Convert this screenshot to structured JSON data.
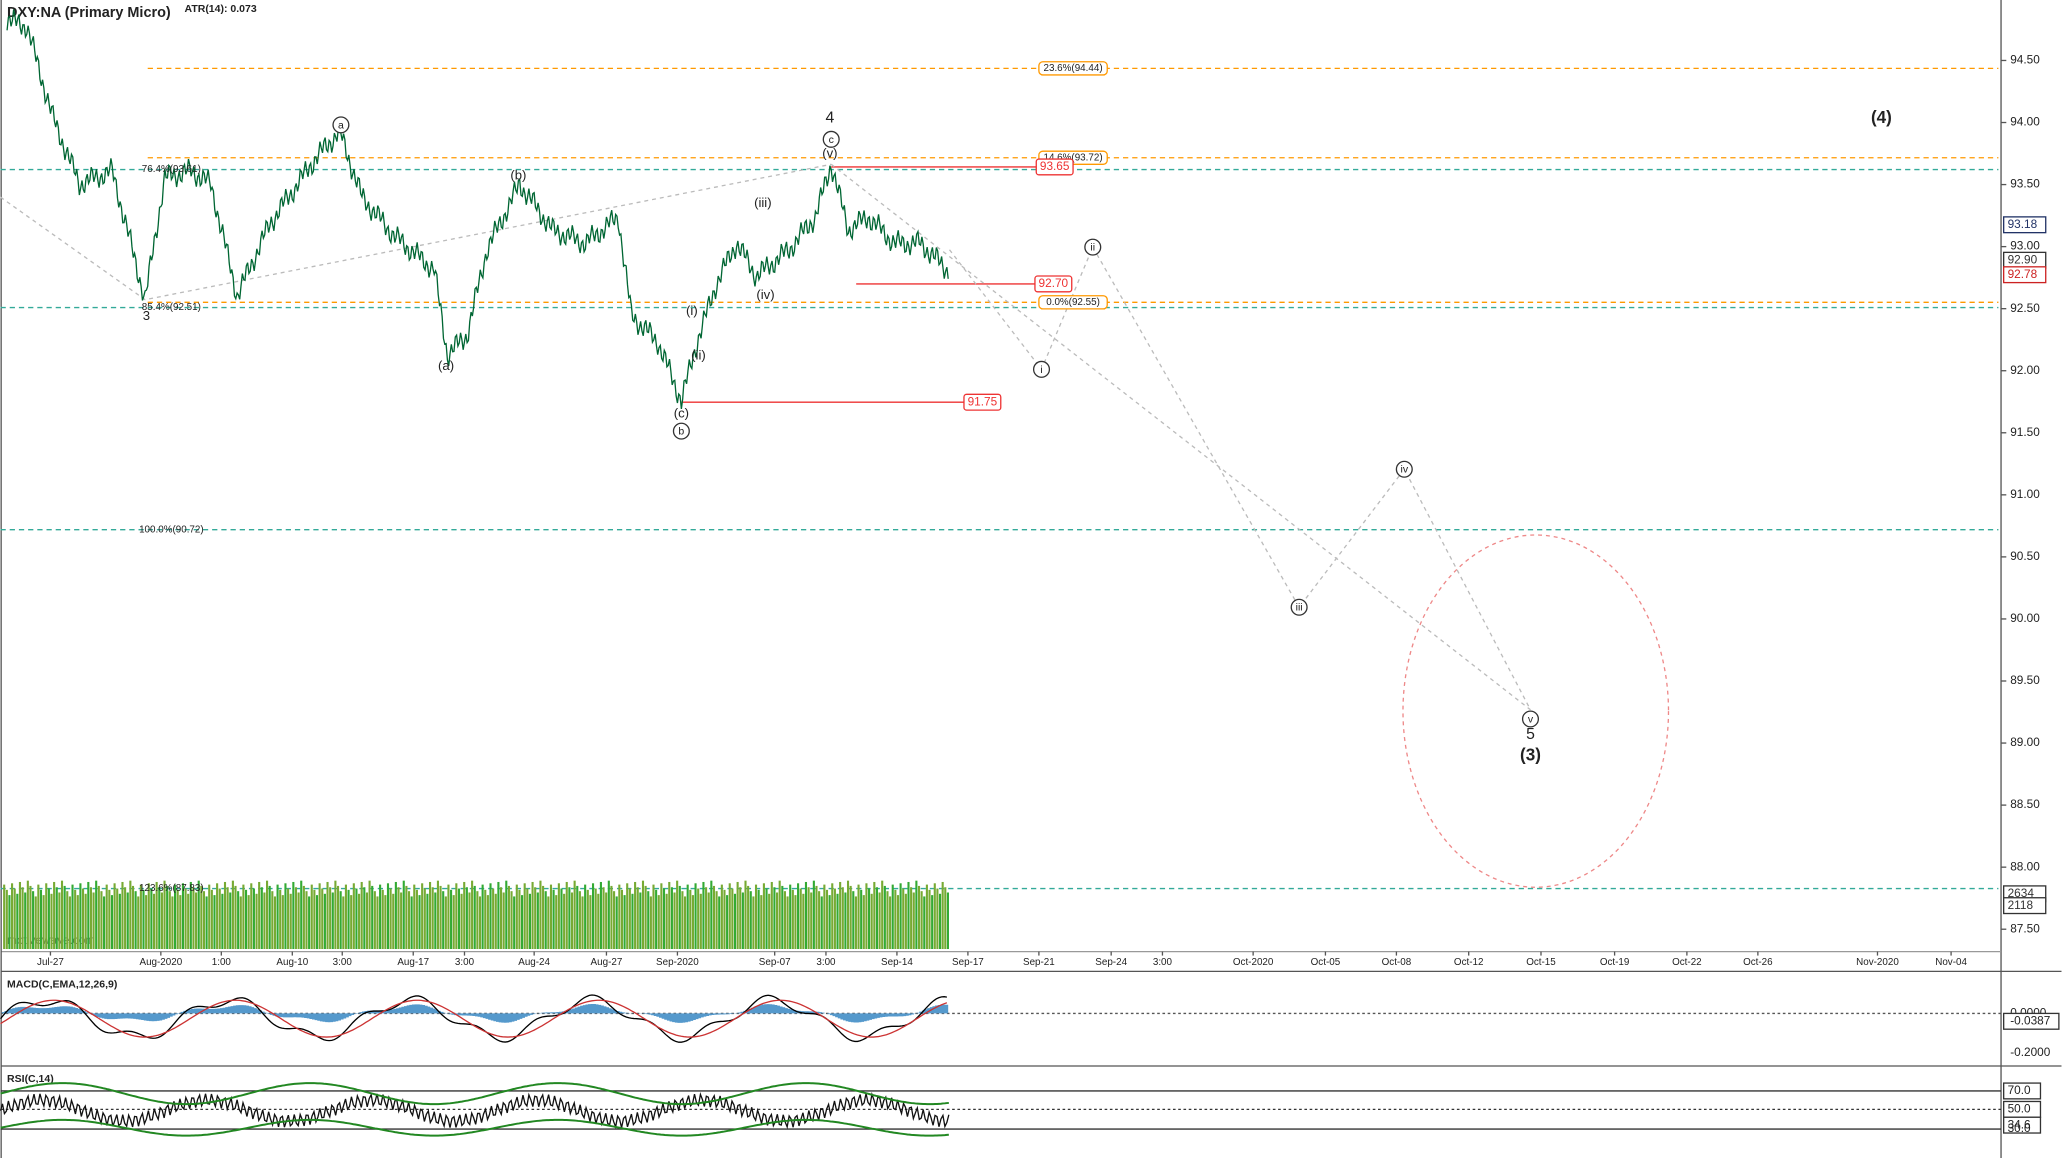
{
  "header": {
    "title": "DXY:NA (Primary Micro)",
    "atr": "ATR(14): 0.073"
  },
  "price_axis": [
    "94.50",
    "94.00",
    "93.50",
    "93.00",
    "92.50",
    "92.00",
    "91.50",
    "91.00",
    "90.50",
    "90.00",
    "89.50",
    "89.00",
    "88.50",
    "88.00",
    "87.50"
  ],
  "price_tags": [
    "93.18",
    "92.90",
    "92.78",
    "2634",
    "2118"
  ],
  "time_axis": [
    "Jul-27",
    "Aug-2020",
    "1:00",
    "Aug-10",
    "3:00",
    "Aug-17",
    "3:00",
    "Aug-24",
    "Aug-27",
    "Sep-2020",
    "Sep-07",
    "3:00",
    "Sep-14",
    "Sep-17",
    "Sep-21",
    "Sep-24",
    "3:00",
    "Oct-2020",
    "Oct-05",
    "Oct-08",
    "Oct-12",
    "Oct-15",
    "Oct-19",
    "Oct-22",
    "Oct-26",
    "Nov-2020",
    "Nov-04"
  ],
  "fib_levels": [
    "23.6%(94.44)",
    "14.6%(93.72)",
    "0.0%(92.55)",
    "76.4%(93.61)",
    "85.4%(92.51)",
    "100.0%(90.72)",
    "123.6%(87.83)"
  ],
  "level_tags": [
    "93.65",
    "92.70",
    "91.75"
  ],
  "wave_labels": [
    "3",
    "(b)",
    "(a)",
    "4",
    "(v)",
    "(iii)",
    "(iv)",
    "(i)",
    "(ii)",
    "(c)",
    "5",
    "(3)",
    "(4)"
  ],
  "circled_labels": [
    "a",
    "c",
    "b",
    "ii",
    "i",
    "iv",
    "iii",
    "v"
  ],
  "watermark": "motivewave.com",
  "macd": {
    "title": "MACD(C,EMA,12,26,9)",
    "axis": [
      "0.0000",
      "-0.0387",
      "-0.2000"
    ]
  },
  "rsi": {
    "title": "RSI(C,14)",
    "axis": [
      "70.0",
      "50.0",
      "34.6",
      "30.0"
    ]
  }
}
